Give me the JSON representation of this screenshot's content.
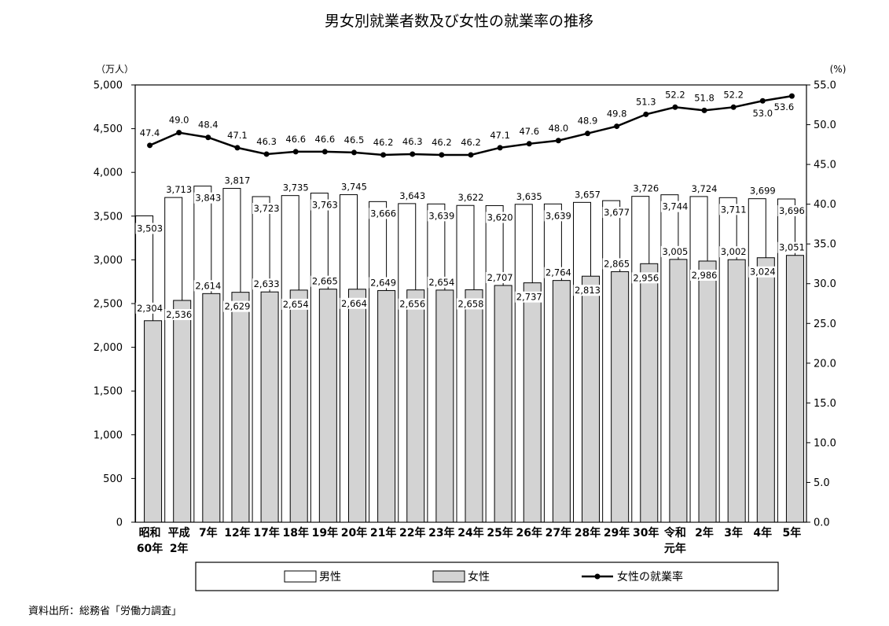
{
  "chart_data": {
    "type": "bar",
    "title": "男女別就業者数及び女性の就業率の推移",
    "y_left_unit": "（万人）",
    "y_right_unit": "(%)",
    "ylim": [
      0,
      5000
    ],
    "y_right_lim": [
      0,
      55
    ],
    "y_ticks": [
      "0",
      "500",
      "1,000",
      "1,500",
      "2,000",
      "2,500",
      "3,000",
      "3,500",
      "4,000",
      "4,500",
      "5,000"
    ],
    "y_right_ticks": [
      "0.0",
      "5.0",
      "10.0",
      "15.0",
      "20.0",
      "25.0",
      "30.0",
      "35.0",
      "40.0",
      "45.0",
      "50.0",
      "55.0"
    ],
    "categories": [
      [
        "昭和",
        "60年"
      ],
      [
        "平成",
        "2年"
      ],
      [
        "7年"
      ],
      [
        "12年"
      ],
      [
        "17年"
      ],
      [
        "18年"
      ],
      [
        "19年"
      ],
      [
        "20年"
      ],
      [
        "21年"
      ],
      [
        "22年"
      ],
      [
        "23年"
      ],
      [
        "24年"
      ],
      [
        "25年"
      ],
      [
        "26年"
      ],
      [
        "27年"
      ],
      [
        "28年"
      ],
      [
        "29年"
      ],
      [
        "30年"
      ],
      [
        "令和",
        "元年"
      ],
      [
        "2年"
      ],
      [
        "3年"
      ],
      [
        "4年"
      ],
      [
        "5年"
      ]
    ],
    "series": [
      {
        "name": "男性",
        "type": "bar",
        "color": "#ffffff",
        "values": [
          3503,
          3713,
          3843,
          3817,
          3723,
          3735,
          3763,
          3745,
          3666,
          3643,
          3639,
          3622,
          3620,
          3635,
          3639,
          3657,
          3677,
          3726,
          3744,
          3724,
          3711,
          3699,
          3696
        ],
        "labels": [
          "3,503",
          "3,713",
          "3,843",
          "3,817",
          "3,723",
          "3,735",
          "3,763",
          "3,745",
          "3,666",
          "3,643",
          "3,639",
          "3,622",
          "3,620",
          "3,635",
          "3,639",
          "3,657",
          "3,677",
          "3,726",
          "3,744",
          "3,724",
          "3,711",
          "3,699",
          "3,696"
        ]
      },
      {
        "name": "女性",
        "type": "bar",
        "color": "#d3d3d3",
        "values": [
          2304,
          2536,
          2614,
          2629,
          2633,
          2654,
          2665,
          2664,
          2649,
          2656,
          2654,
          2658,
          2707,
          2737,
          2764,
          2813,
          2865,
          2956,
          3005,
          2986,
          3002,
          3024,
          3051
        ],
        "labels": [
          "2,304",
          "2,536",
          "2,614",
          "2,629",
          "2,633",
          "2,654",
          "2,665",
          "2,664",
          "2,649",
          "2,656",
          "2,654",
          "2,658",
          "2,707",
          "2,737",
          "2,764",
          "2,813",
          "2,865",
          "2,956",
          "3,005",
          "2,986",
          "3,002",
          "3,024",
          "3,051"
        ]
      },
      {
        "name": "女性の就業率",
        "type": "line",
        "axis": "right",
        "color": "#000000",
        "values": [
          47.4,
          49.0,
          48.4,
          47.1,
          46.3,
          46.6,
          46.6,
          46.5,
          46.2,
          46.3,
          46.2,
          46.2,
          47.1,
          47.6,
          48.0,
          48.9,
          49.8,
          51.3,
          52.2,
          51.8,
          52.2,
          53.0,
          53.6
        ],
        "labels": [
          "47.4",
          "49.0",
          "48.4",
          "47.1",
          "46.3",
          "46.6",
          "46.6",
          "46.5",
          "46.2",
          "46.3",
          "46.2",
          "46.2",
          "47.1",
          "47.6",
          "48.0",
          "48.9",
          "49.8",
          "51.3",
          "52.2",
          "51.8",
          "52.2",
          "53.0",
          "53.6"
        ]
      }
    ],
    "legend": [
      "男性",
      "女性",
      "女性の就業率"
    ],
    "legend_position": "bottom",
    "grid": false
  },
  "source_note": "資料出所：総務省「労働力調査」"
}
